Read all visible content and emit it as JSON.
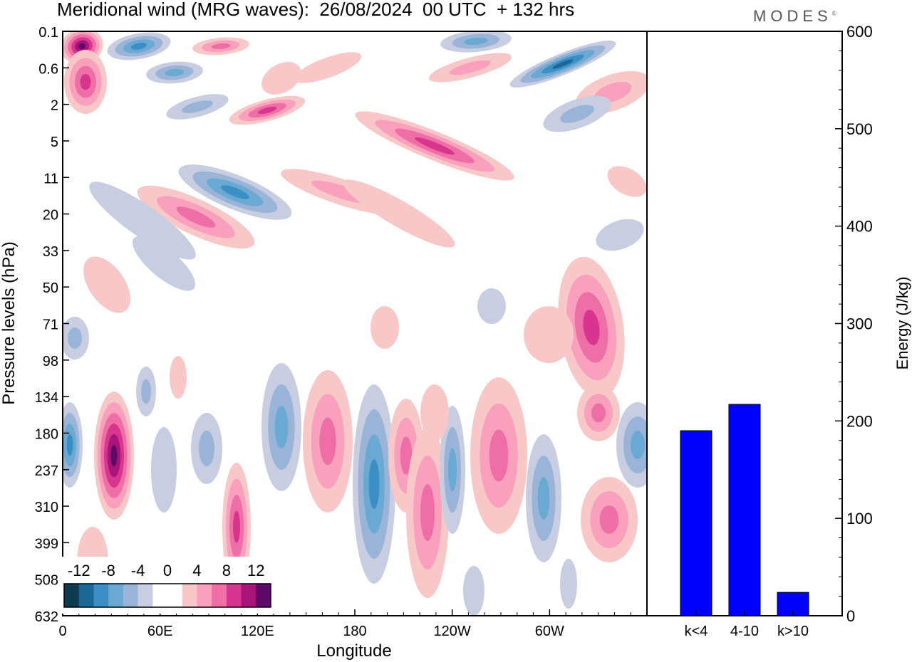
{
  "title": "Meridional wind (MRG waves):  26/08/2024  00 UTC  + 132 hrs",
  "logo": "MODES",
  "logo_mark": "©",
  "chart_data": [
    {
      "type": "heatmap",
      "title": "Meridional wind (MRG waves):  26/08/2024  00 UTC  + 132 hrs",
      "xlabel": "Longitude",
      "ylabel": "Pressure levels (hPa)",
      "x_ticks": [
        "0",
        "60E",
        "120E",
        "180",
        "120W",
        "60W"
      ],
      "y_ticks": [
        "0.1",
        "0.6",
        "2",
        "5",
        "11",
        "20",
        "33",
        "50",
        "71",
        "98",
        "134",
        "180",
        "237",
        "310",
        "399",
        "508",
        "632"
      ],
      "colorbar": {
        "labels": [
          "-12",
          "-8",
          "-4",
          "0",
          "4",
          "8",
          "12"
        ],
        "levels": [
          -14,
          -12,
          -10,
          -8,
          -6,
          -4,
          -2,
          0,
          2,
          4,
          6,
          8,
          10,
          12,
          14
        ],
        "colors": [
          "#0e3a52",
          "#1b6896",
          "#3b8fc4",
          "#6aa9d2",
          "#9ab4d8",
          "#c8cde2",
          "#ffffff",
          "#ffffff",
          "#f8c8c8",
          "#f8a0bc",
          "#ee6ea6",
          "#d8368e",
          "#a81478",
          "#5e0a6a"
        ]
      },
      "features": [
        {
          "lon_range": [
            0,
            20
          ],
          "level": "0.1",
          "value": 13
        },
        {
          "lon_range": [
            0,
            25
          ],
          "level": "0.6-2",
          "value": 10
        },
        {
          "lon_range": [
            25,
            40
          ],
          "level": "0.1-0.6",
          "value": -8
        },
        {
          "lon_range": [
            20,
            40
          ],
          "level": "134-310",
          "value": 10
        },
        {
          "lon_range": [
            90,
            150
          ],
          "level": "11-20",
          "value": -9
        },
        {
          "lon_range": [
            185,
            215
          ],
          "level": "180-399",
          "value": -9
        },
        {
          "lon_range": [
            270,
            300
          ],
          "level": "0.6-2",
          "value": -11
        },
        {
          "lon_range": [
            320,
            340
          ],
          "level": "310-399",
          "value": 9
        }
      ]
    },
    {
      "type": "bar",
      "ylabel": "Energy (J/kg)",
      "categories": [
        "k<4",
        "4-10",
        "k>10"
      ],
      "values": [
        190,
        217,
        24
      ],
      "ylim": [
        0,
        600
      ],
      "y_ticks": [
        0,
        100,
        200,
        300,
        400,
        500,
        600
      ],
      "color": "#0000ff"
    }
  ]
}
